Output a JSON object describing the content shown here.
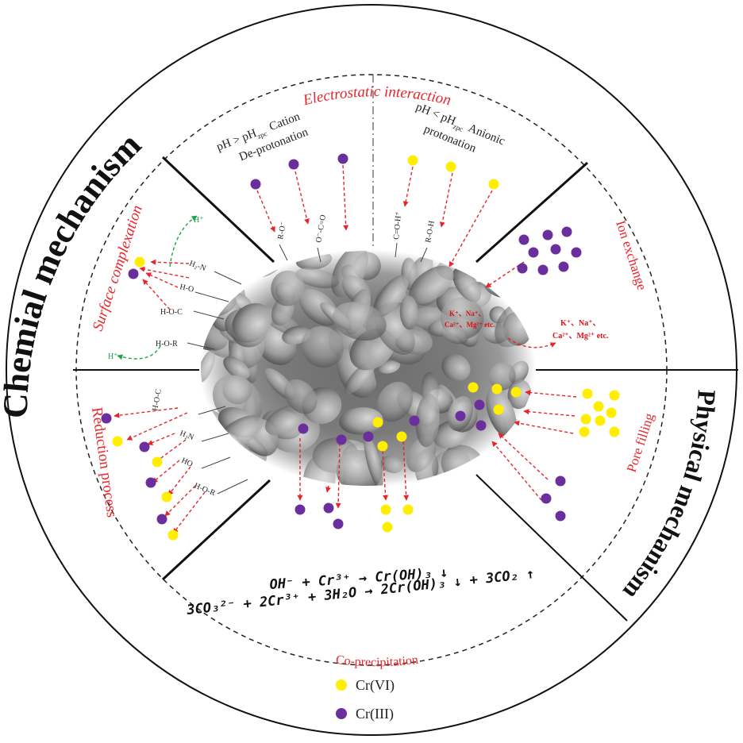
{
  "colors": {
    "cr6": "#ffee00",
    "cr3": "#6a2f9c",
    "label_red": "#e8252b",
    "arrow_red": "#e8252b",
    "arrow_green": "#1aa34a"
  },
  "mechanisms": {
    "chemical": "Chemial mechanism",
    "physical": "Physical mechanism"
  },
  "sectors": {
    "electrostatic": {
      "title": "Electrostatic interaction",
      "left_line1": "pH > pH",
      "left_sub": "zpc",
      "left_line1b": "Cation",
      "left_line2": "De-protonation",
      "right_line1": "pH < pH",
      "right_sub": "zpc",
      "right_line1b": "Anionic",
      "right_line2": "protonation",
      "groups": [
        "R-O⁻",
        "O⁻-C=O",
        "C=O-H⁺",
        "R-O-H"
      ]
    },
    "ion_exchange": {
      "title": "Ion exchange",
      "ions_inner_1": "K⁺、Na⁺、",
      "ions_inner_2": "Ca²⁺、Mg²⁺ etc.",
      "ions_outer_1": "K⁺、Na⁺、",
      "ions_outer_2": "Ca²⁺、Mg²⁺ etc."
    },
    "surface_complexation": {
      "title": "Surface complexation",
      "groups": [
        "H₂-N",
        "H-O",
        "H-O-C",
        "H-O-R"
      ],
      "proton": "H⁺"
    },
    "reduction": {
      "title": "Reduction process",
      "groups": [
        "H-O-C",
        "H₂N",
        "HO",
        "H-O-R"
      ]
    },
    "pore_filling": {
      "title": "Pore filling"
    },
    "co_precipitation": {
      "title": "Co-precipitation",
      "eq1": "OH⁻ + Cr³⁺ → Cr(OH)₃ ↓",
      "eq2": "3CO₃²⁻ + 2Cr³⁺ + 3H₂O → 2Cr(OH)₃ ↓ + 3CO₂ ↑"
    }
  },
  "legend": [
    {
      "label": "Cr(VI)",
      "color": "#ffee00"
    },
    {
      "label": "Cr(III)",
      "color": "#6a2f9c"
    }
  ]
}
